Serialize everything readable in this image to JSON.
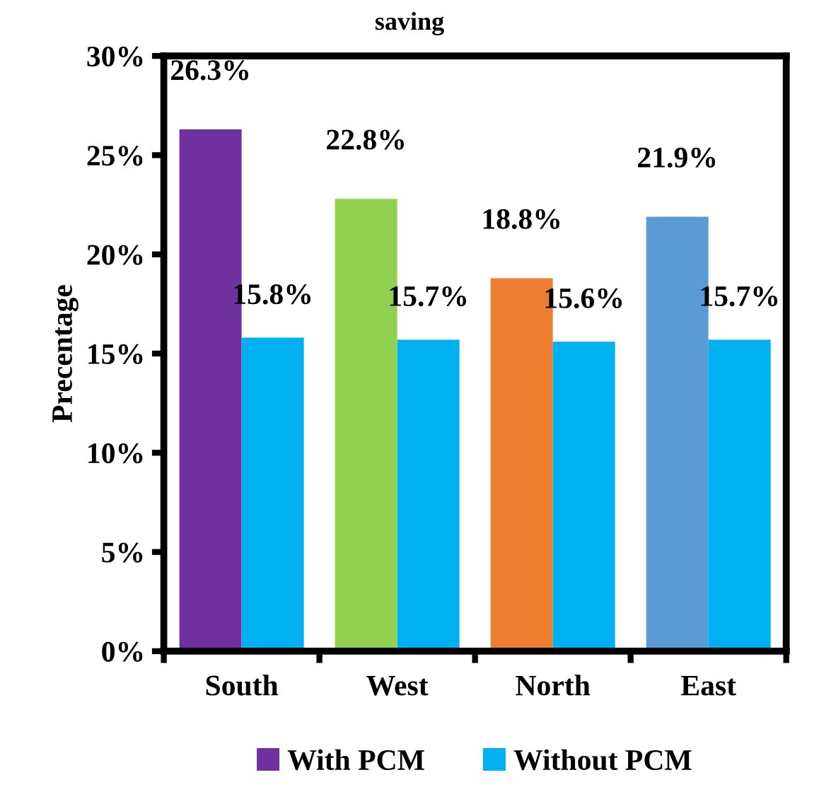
{
  "chart_data": {
    "type": "bar",
    "title": "saving",
    "ylabel": "Precentage",
    "categories": [
      "South",
      "West",
      "North",
      "East"
    ],
    "series": [
      {
        "name": "With PCM",
        "color": "#7030a0",
        "colors": [
          "#7030a0",
          "#92d050",
          "#ed7d31",
          "#5b9bd5"
        ],
        "values": [
          26.3,
          22.8,
          18.8,
          21.9
        ],
        "value_labels": [
          "26.3%",
          "22.8%",
          "18.8%",
          "21.9%"
        ]
      },
      {
        "name": "Without PCM",
        "color": "#00b0f0",
        "values": [
          15.8,
          15.7,
          15.6,
          15.7
        ],
        "value_labels": [
          "15.8%",
          "15.7%",
          "15.6%",
          "15.7%"
        ]
      }
    ],
    "ylim": [
      0,
      30
    ],
    "yticks": [
      {
        "value": 0,
        "label": "0%"
      },
      {
        "value": 5,
        "label": "5%"
      },
      {
        "value": 10,
        "label": "10%"
      },
      {
        "value": 15,
        "label": "15%"
      },
      {
        "value": 20,
        "label": "20%"
      },
      {
        "value": 25,
        "label": "25%"
      },
      {
        "value": 30,
        "label": "30%"
      }
    ],
    "grid": false,
    "legend": "bottom"
  }
}
